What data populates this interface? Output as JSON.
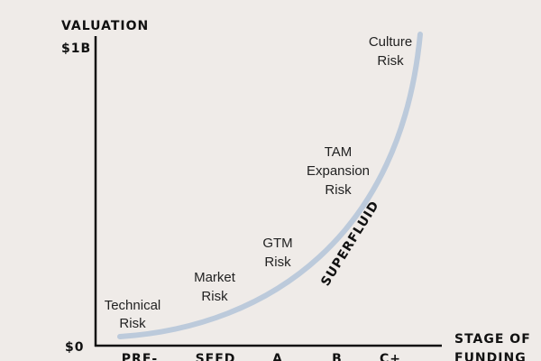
{
  "axes": {
    "y_label": "VALUATION",
    "y_top": "$1B",
    "y_bottom": "$0",
    "x_label": [
      "STAGE OF",
      "FUNDING"
    ],
    "x_stages": [
      "PRE-",
      "SEED",
      "A",
      "B",
      "C+"
    ]
  },
  "curve_label": "SUPERFLUID",
  "risks": [
    [
      "Technical",
      "Risk"
    ],
    [
      "Market",
      "Risk"
    ],
    [
      "GTM",
      "Risk"
    ],
    [
      "TAM",
      "Expansion",
      "Risk"
    ],
    [
      "Culture",
      "Risk"
    ]
  ]
}
